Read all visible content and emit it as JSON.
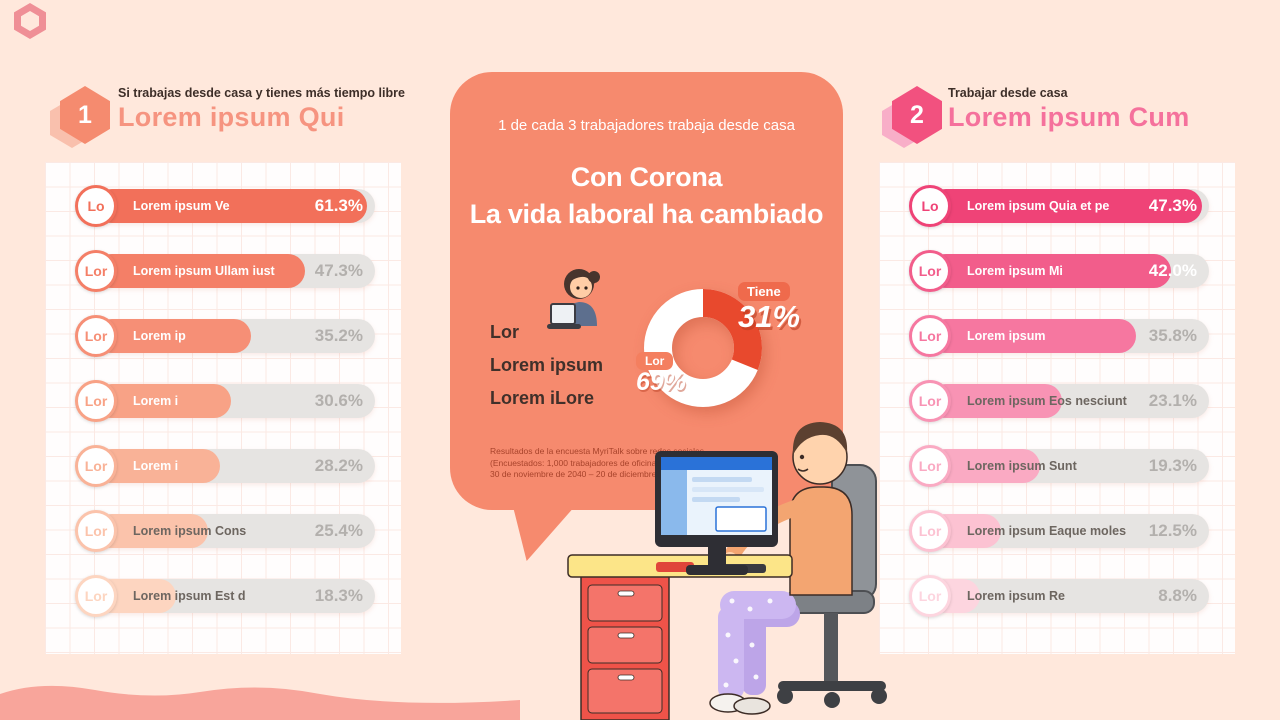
{
  "colors": {
    "background": "#ffe8dc",
    "bubble": "#f68a6e",
    "donut_red": "#e8492d",
    "left_accent": "#f2705a",
    "right_accent": "#ef4377",
    "track_gray": "#e6e4e2",
    "pct_gray": "#b3b0ad",
    "wave_pink": "#f8a59b"
  },
  "icons": {
    "corner_decoration": "hexagon-outline-icon",
    "bottom_decoration": "wave-shape",
    "badge_shape": "hexagon"
  },
  "section_left": {
    "badge": "1",
    "eyebrow": "Si trabajas desde casa y tienes más tiempo libre",
    "title": "Lorem ipsum Qui"
  },
  "section_right": {
    "badge": "2",
    "eyebrow": "Trabajar desde casa",
    "title": "Lorem ipsum Cum"
  },
  "bubble": {
    "intro": "1 de cada 3 trabajadores trabaja desde casa",
    "headline_line1": "Con Corona",
    "headline_line2": "La vida laboral ha cambiado",
    "side_text": [
      "Lor",
      "Lorem ipsum",
      "Lorem iLore"
    ],
    "donut_callouts": {
      "primary_tag": "Tiene",
      "primary_value": "31%",
      "secondary_tag": "Lor",
      "secondary_value": "69%"
    },
    "footnote_lines": [
      "Resultados de la encuesta MyriTalk sobre redes sociales",
      "(Encuestados: 1,000 trabajadores de oficina",
      "30 de noviembre de 2040 – 20 de diciembre de 2040)"
    ]
  },
  "chart_data": [
    {
      "type": "bar",
      "orientation": "horizontal",
      "title": "Lorem ipsum Qui",
      "unit": "%",
      "xmax": 63,
      "rows": [
        {
          "prefix": "Lo",
          "label": "Lorem ipsum Ve",
          "value": 61.3,
          "pct": "61.3%",
          "color": "#f2705a",
          "label_dark": false,
          "pct_on_bar": true
        },
        {
          "prefix": "Lor",
          "label": "Lorem ipsum Ullam iust",
          "value": 47.3,
          "pct": "47.3%",
          "color": "#f47f67",
          "label_dark": false,
          "pct_on_bar": false
        },
        {
          "prefix": "Lor",
          "label": "Lorem ip",
          "value": 35.2,
          "pct": "35.2%",
          "color": "#f68f76",
          "label_dark": false,
          "pct_on_bar": false
        },
        {
          "prefix": "Lor",
          "label": "Lorem i",
          "value": 30.6,
          "pct": "30.6%",
          "color": "#f8a286",
          "label_dark": false,
          "pct_on_bar": false
        },
        {
          "prefix": "Lor",
          "label": "Lorem i",
          "value": 28.2,
          "pct": "28.2%",
          "color": "#f9b297",
          "label_dark": false,
          "pct_on_bar": false
        },
        {
          "prefix": "Lor",
          "label": "Lorem ipsum Cons",
          "value": 25.4,
          "pct": "25.4%",
          "color": "#fbc3ab",
          "label_dark": true,
          "pct_on_bar": false
        },
        {
          "prefix": "Lor",
          "label": "Lorem ipsum Est d",
          "value": 18.3,
          "pct": "18.3%",
          "color": "#fdd5c0",
          "label_dark": true,
          "pct_on_bar": false
        }
      ]
    },
    {
      "type": "bar",
      "orientation": "horizontal",
      "title": "Lorem ipsum Cum",
      "unit": "%",
      "xmax": 48.5,
      "rows": [
        {
          "prefix": "Lo",
          "label": "Lorem ipsum Quia et pe",
          "value": 47.3,
          "pct": "47.3%",
          "color": "#ef4377",
          "label_dark": false,
          "pct_on_bar": true
        },
        {
          "prefix": "Lor",
          "label": "Lorem ipsum Mi",
          "value": 42.0,
          "pct": "42.0%",
          "color": "#f25d8b",
          "label_dark": false,
          "pct_on_bar": true
        },
        {
          "prefix": "Lor",
          "label": "Lorem ipsum",
          "value": 35.8,
          "pct": "35.8%",
          "color": "#f677a0",
          "label_dark": false,
          "pct_on_bar": false
        },
        {
          "prefix": "Lor",
          "label": "Lorem ipsum Eos nesciunt",
          "value": 23.1,
          "pct": "23.1%",
          "color": "#f893b4",
          "label_dark": true,
          "pct_on_bar": false
        },
        {
          "prefix": "Lor",
          "label": "Lorem ipsum Sunt",
          "value": 19.3,
          "pct": "19.3%",
          "color": "#faaac3",
          "label_dark": true,
          "pct_on_bar": false
        },
        {
          "prefix": "Lor",
          "label": "Lorem ipsum Eaque moles",
          "value": 12.5,
          "pct": "12.5%",
          "color": "#fcc2d2",
          "label_dark": true,
          "pct_on_bar": false
        },
        {
          "prefix": "Lor",
          "label": "Lorem ipsum Re",
          "value": 8.8,
          "pct": "8.8%",
          "color": "#fdd5df",
          "label_dark": true,
          "pct_on_bar": false
        }
      ]
    },
    {
      "type": "pie",
      "subtype": "donut",
      "labels": [
        "Tiene",
        "Lor"
      ],
      "values": [
        31,
        69
      ],
      "colors": [
        "#e8492d",
        "#ffffff"
      ],
      "legend_position": "callouts"
    }
  ]
}
